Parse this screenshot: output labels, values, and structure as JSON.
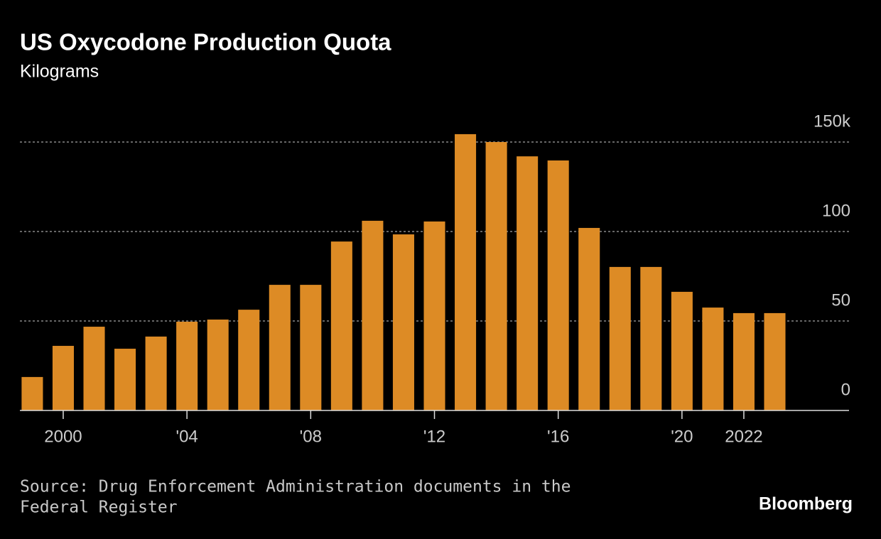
{
  "chart_data": {
    "type": "bar",
    "title": "US Oxycodone Production Quota",
    "subtitle": "Kilograms",
    "x": [
      1999,
      2000,
      2001,
      2002,
      2003,
      2004,
      2005,
      2006,
      2007,
      2008,
      2009,
      2010,
      2011,
      2012,
      2013,
      2014,
      2015,
      2016,
      2017,
      2018,
      2019,
      2020,
      2021,
      2022,
      2023
    ],
    "values": [
      18.7,
      36.1,
      46.8,
      34.5,
      41.3,
      49.6,
      50.8,
      56.3,
      70.2,
      70.2,
      94.4,
      106,
      98.4,
      105.6,
      154.4,
      150,
      142,
      139.7,
      102,
      80.2,
      80.2,
      66.3,
      57.5,
      54.4,
      54.4
    ],
    "color": "#dd8b25",
    "xlim": [
      1998.6,
      2025.4
    ],
    "xticks": [
      2000,
      {
        "value": 2004,
        "label": "'04"
      },
      {
        "value": 2008,
        "label": "'08"
      },
      {
        "value": 2012,
        "label": "'12"
      },
      {
        "value": 2016,
        "label": "'16"
      },
      {
        "value": 2020,
        "label": "'20"
      },
      2022
    ],
    "ylim": [
      0,
      150
    ],
    "yticks": [
      0,
      50,
      100,
      {
        "value": 150,
        "label": "150k"
      }
    ],
    "grid": true,
    "source": [
      "Source: Drug Enforcement Administration documents in the",
      "Federal Register"
    ],
    "brand": "Bloomberg"
  }
}
